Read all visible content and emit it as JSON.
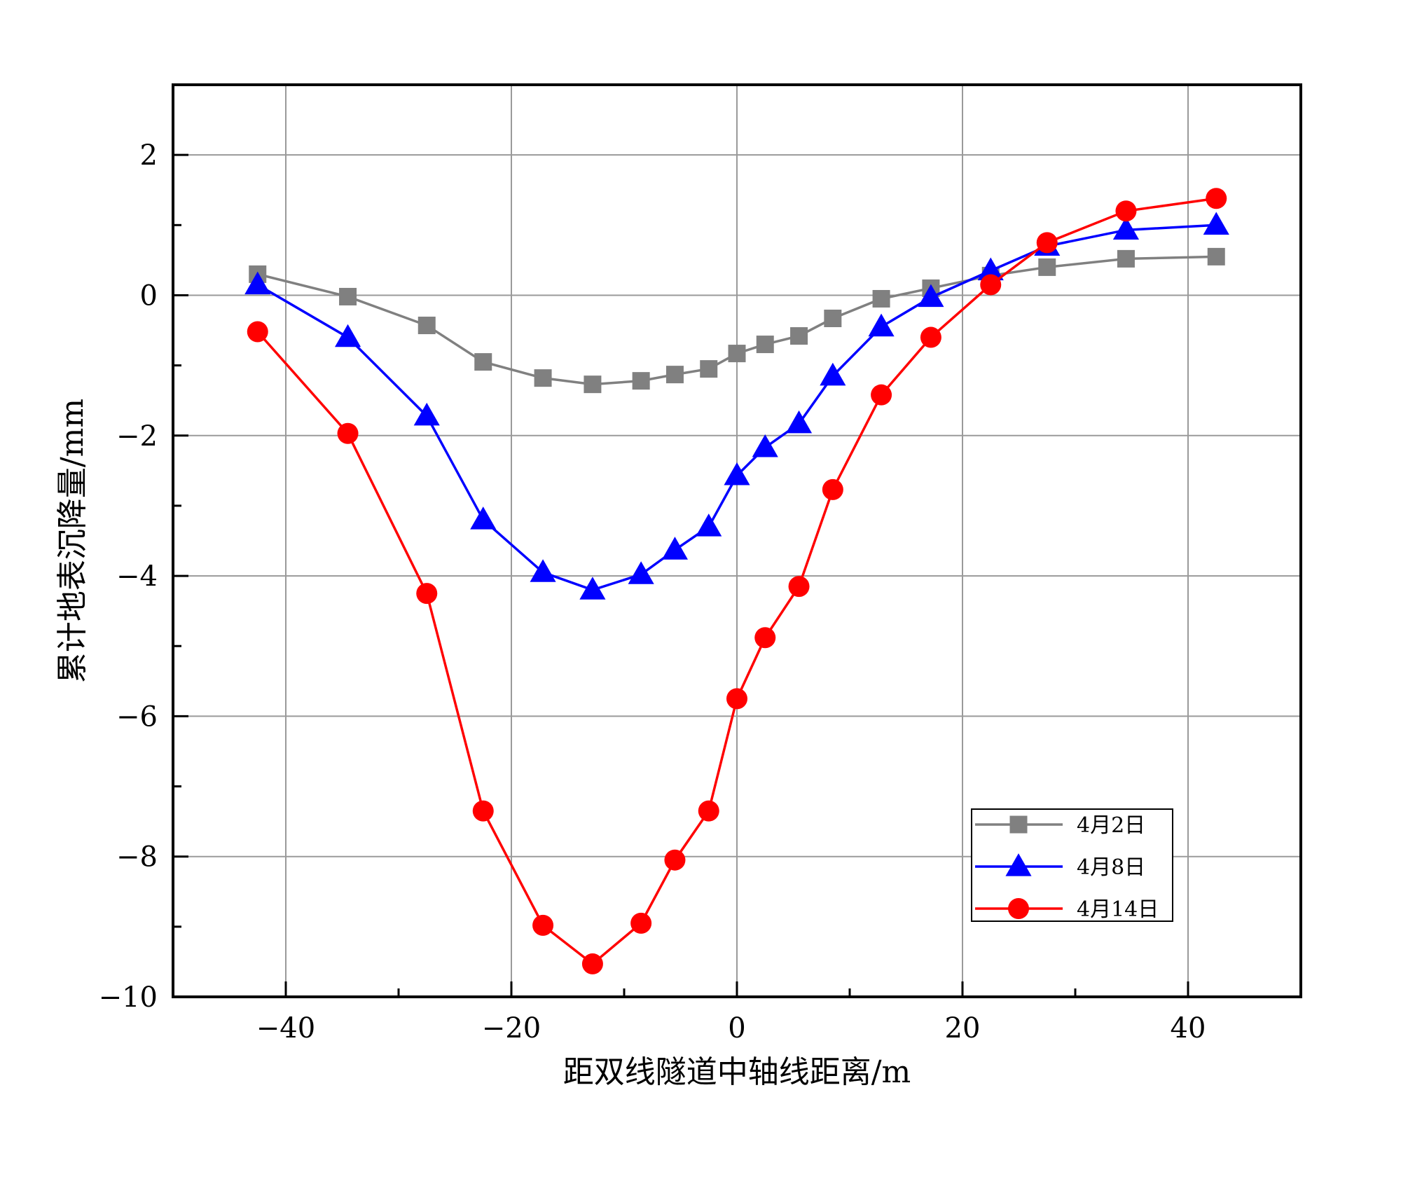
{
  "chart_data": {
    "type": "line",
    "title": "",
    "xlabel": "距双线隧道中轴线距离/m",
    "ylabel": "累计地表沉降量/mm",
    "xlim": [
      -50,
      50
    ],
    "ylim": [
      -10,
      3
    ],
    "x_ticks": [
      -40,
      -20,
      0,
      20,
      40
    ],
    "y_ticks": [
      -10,
      -8,
      -6,
      -4,
      -2,
      0,
      2
    ],
    "x_tick_labels": [
      "−40",
      "−20",
      "0",
      "20",
      "40"
    ],
    "y_tick_labels": [
      "−10",
      "−8",
      "−6",
      "−4",
      "−2",
      "0",
      "2"
    ],
    "grid": true,
    "legend_position": "bottom-right",
    "series": [
      {
        "name": "4月2日",
        "color": "#808080",
        "marker": "square",
        "x": [
          -42.5,
          -34.5,
          -27.5,
          -22.5,
          -17.2,
          -12.8,
          -8.5,
          -5.5,
          -2.5,
          0,
          2.5,
          5.5,
          8.5,
          12.8,
          17.2,
          22.5,
          27.5,
          34.5,
          42.5
        ],
        "y": [
          0.3,
          -0.02,
          -0.43,
          -0.95,
          -1.18,
          -1.27,
          -1.22,
          -1.13,
          -1.05,
          -0.83,
          -0.7,
          -0.58,
          -0.33,
          -0.05,
          0.1,
          0.28,
          0.4,
          0.52,
          0.55
        ]
      },
      {
        "name": "4月8日",
        "color": "#0000ff",
        "marker": "triangle",
        "x": [
          -42.5,
          -34.5,
          -27.5,
          -22.5,
          -17.2,
          -12.8,
          -8.5,
          -5.5,
          -2.5,
          0,
          2.5,
          5.5,
          8.5,
          12.8,
          17.2,
          22.5,
          27.5,
          34.5,
          42.5
        ],
        "y": [
          0.15,
          -0.6,
          -1.72,
          -3.2,
          -3.95,
          -4.2,
          -3.98,
          -3.63,
          -3.3,
          -2.57,
          -2.17,
          -1.83,
          -1.15,
          -0.45,
          -0.03,
          0.35,
          0.7,
          0.93,
          1.0
        ]
      },
      {
        "name": "4月14日",
        "color": "#ff0000",
        "marker": "circle",
        "x": [
          -42.5,
          -34.5,
          -27.5,
          -22.5,
          -17.2,
          -12.8,
          -8.5,
          -5.5,
          -2.5,
          0,
          2.5,
          5.5,
          8.5,
          12.8,
          17.2,
          22.5,
          27.5,
          34.5,
          42.5
        ],
        "y": [
          -0.52,
          -1.97,
          -4.25,
          -7.35,
          -8.98,
          -9.53,
          -8.95,
          -8.05,
          -7.35,
          -5.75,
          -4.88,
          -4.15,
          -2.77,
          -1.42,
          -0.6,
          0.15,
          0.75,
          1.2,
          1.38
        ]
      }
    ]
  }
}
